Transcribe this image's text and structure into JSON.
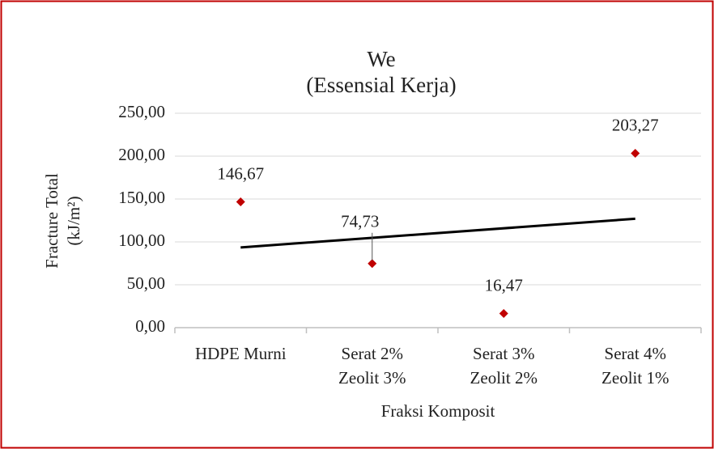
{
  "chart_data": {
    "type": "scatter",
    "title": "We",
    "subtitle": "(Essensial Kerja)",
    "x_label": "Fraksi Komposit",
    "y_label": [
      "Fracture Total",
      "(kJ/m²)"
    ],
    "categories": [
      [
        "HDPE Murni"
      ],
      [
        "Serat 2%",
        "Zeolit 3%"
      ],
      [
        "Serat 3%",
        "Zeolit 2%"
      ],
      [
        "Serat 4%",
        "Zeolit 1%"
      ]
    ],
    "values": [
      146.67,
      74.73,
      16.47,
      203.27
    ],
    "value_labels": [
      "146,67",
      "74,73",
      "16,47",
      "203,27"
    ],
    "color": "#c00000",
    "trendline": "linear",
    "ylim": [
      0,
      250
    ],
    "yticks": [
      {
        "value": 0,
        "label": "0,00"
      },
      {
        "value": 50,
        "label": "50,00"
      },
      {
        "value": 100,
        "label": "100,00"
      },
      {
        "value": 150,
        "label": "150,00"
      },
      {
        "value": 200,
        "label": "200,00"
      },
      {
        "value": 250,
        "label": "250,00"
      }
    ],
    "grid": true
  }
}
